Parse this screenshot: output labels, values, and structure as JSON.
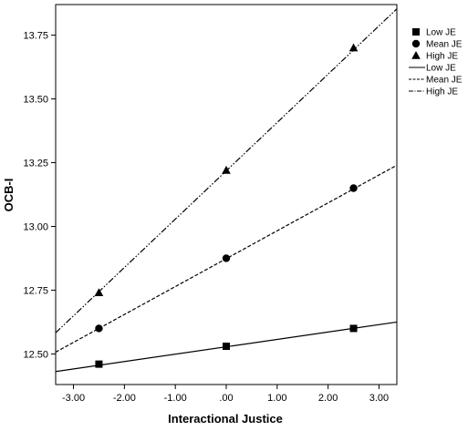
{
  "chart_data": {
    "type": "line",
    "title": "",
    "xlabel": "Interactional Justice",
    "ylabel": "OCB-I",
    "xlim": [
      -3.35,
      3.35
    ],
    "ylim": [
      12.38,
      13.87
    ],
    "x_ticks": [
      -3.0,
      -2.0,
      -1.0,
      0.0,
      1.0,
      2.0,
      3.0
    ],
    "x_tick_labels": [
      "-3.00",
      "-2.00",
      "-1.00",
      ".00",
      "1.00",
      "2.00",
      "3.00"
    ],
    "y_ticks": [
      12.5,
      12.75,
      13.0,
      13.25,
      13.5,
      13.75
    ],
    "y_tick_labels": [
      "12.50",
      "12.75",
      "13.00",
      "13.25",
      "13.50",
      "13.75"
    ],
    "grid": false,
    "legend_position": "right",
    "point_series": [
      {
        "name": "Low JE",
        "marker": "square",
        "x": [
          -2.5,
          0.0,
          2.5
        ],
        "y": [
          12.46,
          12.53,
          12.6
        ]
      },
      {
        "name": "Mean JE",
        "marker": "circle",
        "x": [
          -2.5,
          0.0,
          2.5
        ],
        "y": [
          12.6,
          12.875,
          13.15
        ]
      },
      {
        "name": "High JE",
        "marker": "triangle",
        "x": [
          -2.5,
          0.0,
          2.5
        ],
        "y": [
          12.74,
          13.22,
          13.7
        ]
      }
    ],
    "line_series": [
      {
        "name": "Low JE",
        "dash": "solid",
        "x": [
          -3.35,
          3.35
        ],
        "y": [
          12.431,
          12.625
        ]
      },
      {
        "name": "Mean JE",
        "dash": "short-dash",
        "x": [
          -3.35,
          3.35
        ],
        "y": [
          12.507,
          13.24
        ]
      },
      {
        "name": "High JE",
        "dash": "dash-dot-dot",
        "x": [
          -3.35,
          3.35
        ],
        "y": [
          12.583,
          13.853
        ]
      }
    ]
  }
}
